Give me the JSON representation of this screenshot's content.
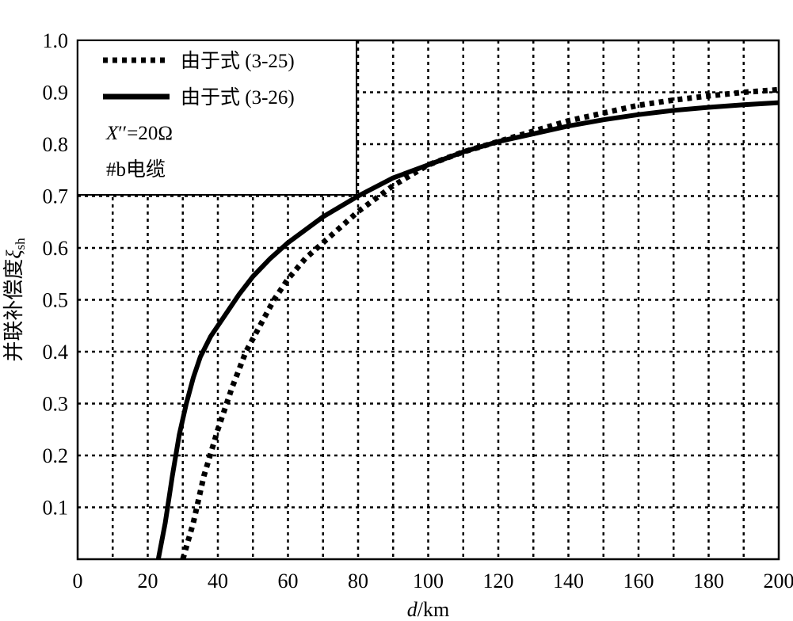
{
  "chart_data": {
    "type": "line",
    "title": "",
    "xlabel": {
      "var": "d",
      "unit": "/km"
    },
    "ylabel": {
      "text": "并联补偿度",
      "symbol": "ξ",
      "sub": "sh"
    },
    "xlim": [
      0,
      200
    ],
    "ylim": [
      0,
      1.0
    ],
    "xticks": [
      0,
      20,
      40,
      60,
      80,
      100,
      120,
      140,
      160,
      180,
      200
    ],
    "yticks": [
      0.1,
      0.2,
      0.3,
      0.4,
      0.5,
      0.6,
      0.7,
      0.8,
      0.9,
      1.0
    ],
    "grid": true,
    "legend_position": "top-left",
    "series": [
      {
        "name": "由于式 (3-25)",
        "style": "dotted",
        "x": [
          30,
          33,
          36,
          40,
          44,
          48,
          52,
          56,
          60,
          65,
          70,
          80,
          90,
          100,
          110,
          120,
          130,
          140,
          150,
          160,
          170,
          180,
          190,
          200
        ],
        "y": [
          0.0,
          0.07,
          0.16,
          0.25,
          0.33,
          0.4,
          0.45,
          0.5,
          0.54,
          0.58,
          0.61,
          0.67,
          0.72,
          0.76,
          0.785,
          0.805,
          0.825,
          0.845,
          0.86,
          0.875,
          0.885,
          0.893,
          0.9,
          0.905
        ]
      },
      {
        "name": "由于式 (3-26)",
        "style": "solid",
        "x": [
          23,
          25,
          27,
          29,
          31,
          33,
          35,
          38,
          42,
          46,
          50,
          55,
          60,
          70,
          80,
          90,
          100,
          110,
          120,
          130,
          140,
          150,
          160,
          170,
          180,
          190,
          200
        ],
        "y": [
          0.0,
          0.07,
          0.16,
          0.24,
          0.3,
          0.35,
          0.39,
          0.43,
          0.47,
          0.51,
          0.545,
          0.58,
          0.61,
          0.66,
          0.7,
          0.735,
          0.76,
          0.785,
          0.805,
          0.82,
          0.835,
          0.847,
          0.857,
          0.865,
          0.871,
          0.876,
          0.88
        ]
      }
    ],
    "annotations": [
      {
        "lead": "X",
        "primes": "′′",
        "tail": "=20Ω"
      },
      {
        "text": "#b电缆"
      }
    ]
  },
  "colors": {
    "line": "#000000",
    "grid": "#000000",
    "background": "#ffffff"
  }
}
